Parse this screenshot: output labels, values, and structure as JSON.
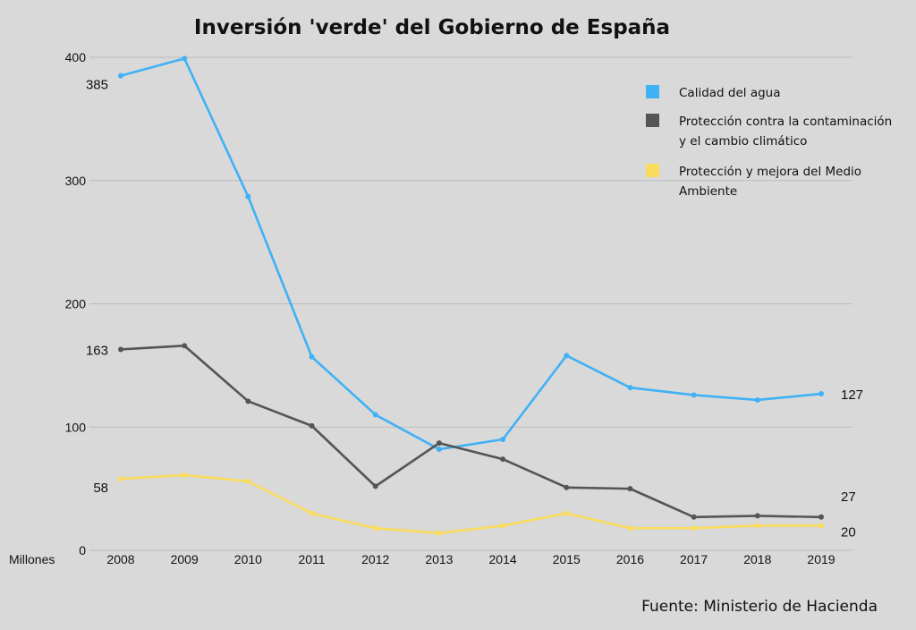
{
  "chart_data": {
    "type": "line",
    "title": "Inversión 'verde' del Gobierno de España",
    "ylabel": "Millones",
    "x": [
      "2008",
      "2009",
      "2010",
      "2011",
      "2012",
      "2013",
      "2014",
      "2015",
      "2016",
      "2017",
      "2018",
      "2019"
    ],
    "ylim": [
      0,
      400
    ],
    "yticks": [
      0,
      100,
      200,
      300,
      400
    ],
    "grid": true,
    "legend_position": "top-right",
    "series": [
      {
        "name": "Calidad del agua",
        "color": "#3fb1f5",
        "values": [
          385,
          399,
          287,
          157,
          110,
          82,
          90,
          158,
          132,
          126,
          122,
          127
        ]
      },
      {
        "name": "Protección contra la contaminación y el cambio climático",
        "color": "#555555",
        "values": [
          163,
          166,
          121,
          101,
          52,
          87,
          74,
          51,
          50,
          27,
          28,
          27
        ]
      },
      {
        "name": "Protección y mejora del Medio Ambiente",
        "color": "#f9dc5c",
        "values": [
          58,
          61,
          56,
          30,
          18,
          14,
          20,
          30,
          18,
          18,
          20,
          20
        ]
      }
    ],
    "annotations": [
      {
        "text": "385",
        "series": 0,
        "index": 0,
        "side": "left"
      },
      {
        "text": "163",
        "series": 1,
        "index": 0,
        "side": "left"
      },
      {
        "text": "58",
        "series": 2,
        "index": 0,
        "side": "left"
      },
      {
        "text": "127",
        "series": 0,
        "index": 11,
        "side": "right"
      },
      {
        "text": "27",
        "series": 1,
        "index": 11,
        "side": "right"
      },
      {
        "text": "20",
        "series": 2,
        "index": 11,
        "side": "right"
      }
    ],
    "legend_lines": [
      [
        "Calidad del agua"
      ],
      [
        "Protección contra la contaminación",
        "y el cambio climático"
      ],
      [
        "Protección y mejora del Medio",
        "Ambiente"
      ]
    ]
  },
  "source": "Fuente: Ministerio de Hacienda"
}
